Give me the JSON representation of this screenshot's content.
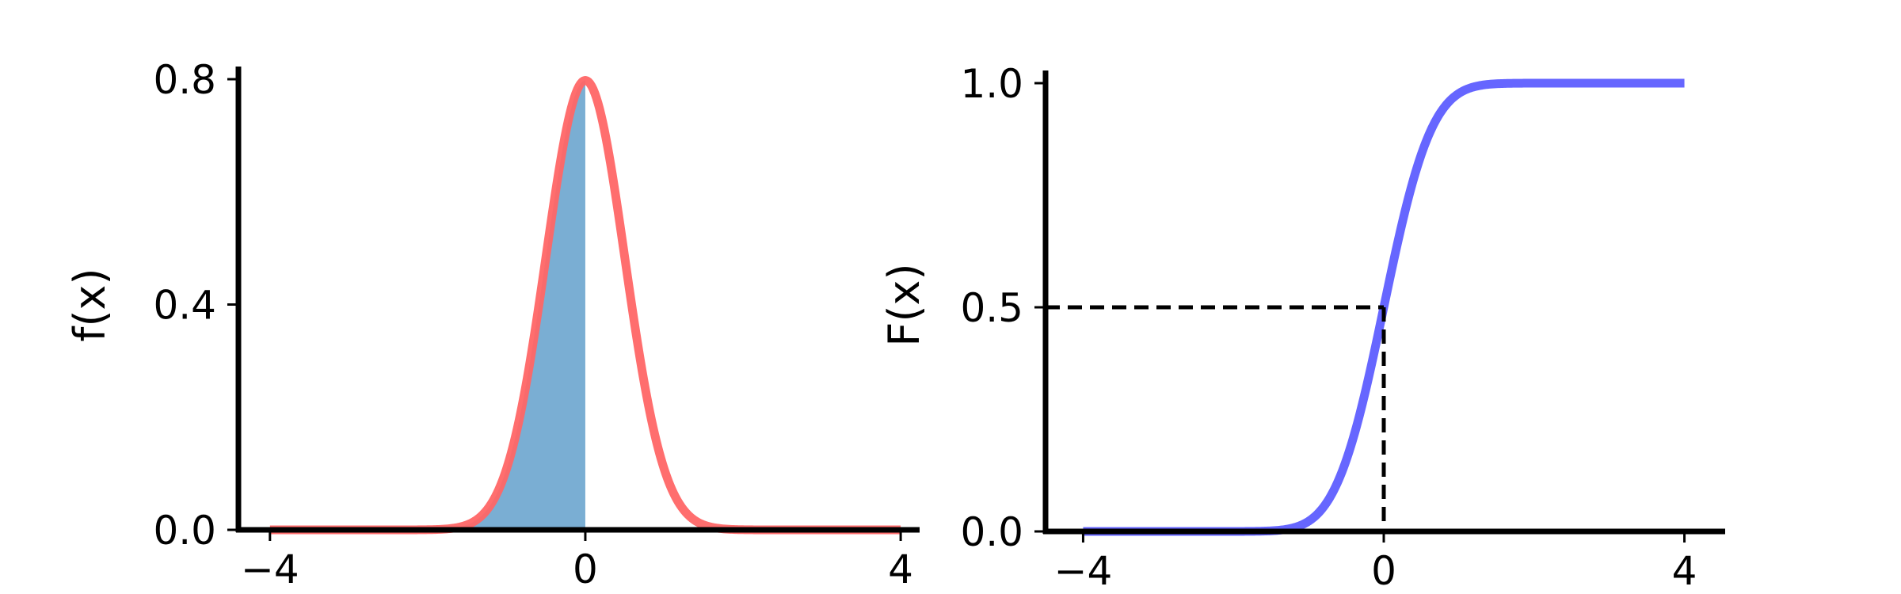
{
  "colors": {
    "pdf_curve": "#ff6666",
    "pdf_fill": "#7aaed3",
    "cdf_curve": "#6666ff",
    "axes": "#000000",
    "guide_lines": "#000000",
    "background": "#ffffff"
  },
  "chart_data": [
    {
      "type": "area",
      "ylabel": "f(x)",
      "xlabel": "",
      "xlim": [
        -4.4,
        4.2
      ],
      "ylim": [
        0,
        0.8
      ],
      "x_ticks": [
        {
          "value": -4,
          "label": "−4"
        },
        {
          "value": 0,
          "label": "0"
        },
        {
          "value": 4,
          "label": "4"
        }
      ],
      "y_ticks": [
        {
          "value": 0.0,
          "label": "0.0"
        },
        {
          "value": 0.4,
          "label": "0.4"
        },
        {
          "value": 0.8,
          "label": "0.8"
        }
      ],
      "grid": false,
      "series": [
        {
          "kind": "line",
          "function": "normal_pdf",
          "mean": 0,
          "std": 0.5,
          "x_range": [
            -4,
            4
          ],
          "color": "pdf_curve"
        },
        {
          "kind": "shaded_area",
          "function": "normal_pdf",
          "mean": 0,
          "std": 0.5,
          "x_range": [
            -4,
            0
          ],
          "color": "pdf_fill"
        }
      ]
    },
    {
      "type": "line",
      "ylabel": "F(x)",
      "xlabel": "",
      "xlim": [
        -4.5,
        4.5
      ],
      "ylim": [
        0,
        1
      ],
      "x_ticks": [
        {
          "value": -4,
          "label": "−4"
        },
        {
          "value": 0,
          "label": "0"
        },
        {
          "value": 4,
          "label": "4"
        }
      ],
      "y_ticks": [
        {
          "value": 0.0,
          "label": "0.0"
        },
        {
          "value": 0.5,
          "label": "0.5"
        },
        {
          "value": 1.0,
          "label": "1.0"
        }
      ],
      "grid": false,
      "series": [
        {
          "kind": "line",
          "function": "normal_cdf",
          "mean": 0,
          "std": 0.5,
          "x_range": [
            -4,
            4
          ],
          "color": "cdf_curve"
        }
      ],
      "guide_lines": {
        "style": "dashed",
        "x": 0,
        "y": 0.5
      }
    }
  ]
}
